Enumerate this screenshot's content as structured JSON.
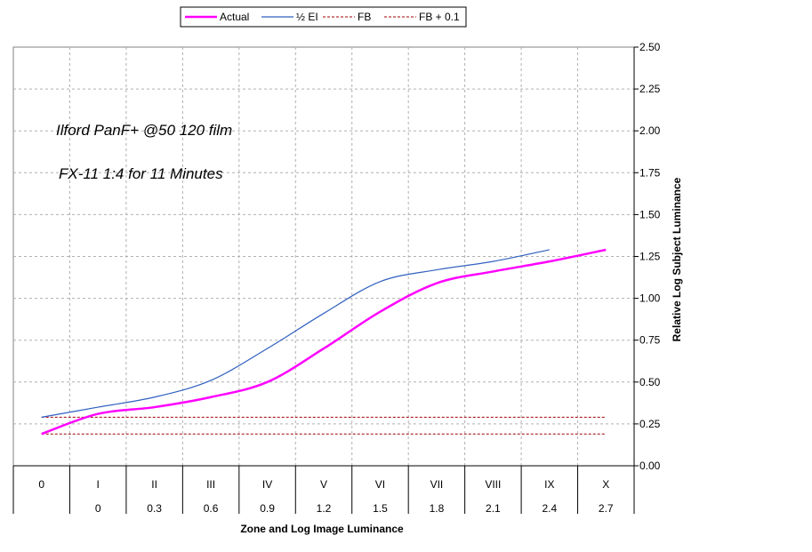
{
  "chart_data": {
    "type": "line",
    "legend": {
      "placement": "top",
      "entries": [
        "Actual",
        "½ EI",
        "FB",
        "FB + 0.1"
      ]
    },
    "annotations": [
      "Ilford PanF+ @50 120 film",
      "FX-11 1:4 for 11 Minutes"
    ],
    "xlabel": "Zone and Log Image Luminance",
    "ylabel": "Relative Log Subject Luminance",
    "ylim": [
      0,
      2.5
    ],
    "yticks": [
      "0.00",
      "0.25",
      "0.50",
      "0.75",
      "1.00",
      "1.25",
      "1.50",
      "1.75",
      "2.00",
      "2.25",
      "2.50"
    ],
    "grid": true,
    "zones": [
      "0",
      "I",
      "II",
      "III",
      "IV",
      "V",
      "VI",
      "VII",
      "VIII",
      "IX",
      "X"
    ],
    "log_luminance": [
      "",
      "0",
      "0.3",
      "0.6",
      "0.9",
      "1.2",
      "1.5",
      "1.8",
      "2.1",
      "2.4",
      "2.7"
    ],
    "x": [
      0,
      1,
      2,
      3,
      4,
      5,
      6,
      7,
      8,
      9,
      10
    ],
    "series": [
      {
        "name": "Actual",
        "color": "#ff00ff",
        "style": "solid",
        "values": [
          0.19,
          0.31,
          0.35,
          0.41,
          0.5,
          0.7,
          0.92,
          1.09,
          1.16,
          1.22,
          1.29
        ]
      },
      {
        "name": "½ EI",
        "color": "#3060c0",
        "style": "solid",
        "values": [
          0.29,
          0.35,
          0.41,
          0.51,
          0.7,
          0.91,
          1.1,
          1.17,
          1.22,
          1.29,
          null
        ]
      },
      {
        "name": "FB",
        "color": "#a00000",
        "style": "dashed",
        "values": [
          0.19,
          0.19,
          0.19,
          0.19,
          0.19,
          0.19,
          0.19,
          0.19,
          0.19,
          0.19,
          0.19
        ]
      },
      {
        "name": "FB + 0.1",
        "color": "#a00000",
        "style": "dashed",
        "values": [
          0.29,
          0.29,
          0.29,
          0.29,
          0.29,
          0.29,
          0.29,
          0.29,
          0.29,
          0.29,
          0.29
        ]
      }
    ]
  }
}
